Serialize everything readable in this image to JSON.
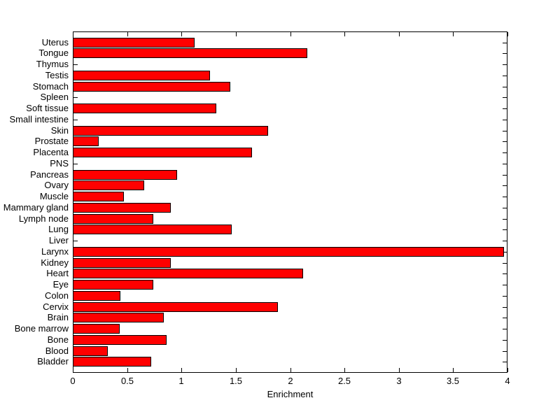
{
  "figure": {
    "background_color": "#ffffff",
    "axes_background_color": "#ffffff",
    "axes_edge_color": "#000000"
  },
  "chart_data": {
    "type": "bar",
    "orientation": "horizontal",
    "title": "",
    "xlabel": "Enrichment",
    "ylabel": "",
    "xlim": [
      0,
      4
    ],
    "xticks": [
      0,
      0.5,
      1,
      1.5,
      2,
      2.5,
      3,
      3.5,
      4
    ],
    "grid": false,
    "legend": null,
    "bar_color": "#ff0000",
    "bar_edge_color": "#000000",
    "categories": [
      "Uterus",
      "Tongue",
      "Thymus",
      "Testis",
      "Stomach",
      "Spleen",
      "Soft tissue",
      "Small intestine",
      "Skin",
      "Prostate",
      "Placenta",
      "PNS",
      "Pancreas",
      "Ovary",
      "Muscle",
      "Mammary gland",
      "Lymph node",
      "Lung",
      "Liver",
      "Larynx",
      "Kidney",
      "Heart",
      "Eye",
      "Colon",
      "Cervix",
      "Brain",
      "Bone marrow",
      "Bone",
      "Blood",
      "Bladder"
    ],
    "values": [
      1.12,
      2.16,
      0,
      1.26,
      1.45,
      0,
      1.32,
      0,
      1.8,
      0.24,
      1.65,
      0,
      0.96,
      0.66,
      0.47,
      0.9,
      0.74,
      1.46,
      0,
      3.97,
      0.9,
      2.12,
      0.74,
      0.44,
      1.89,
      0.84,
      0.43,
      0.86,
      0.32,
      0.72
    ]
  }
}
